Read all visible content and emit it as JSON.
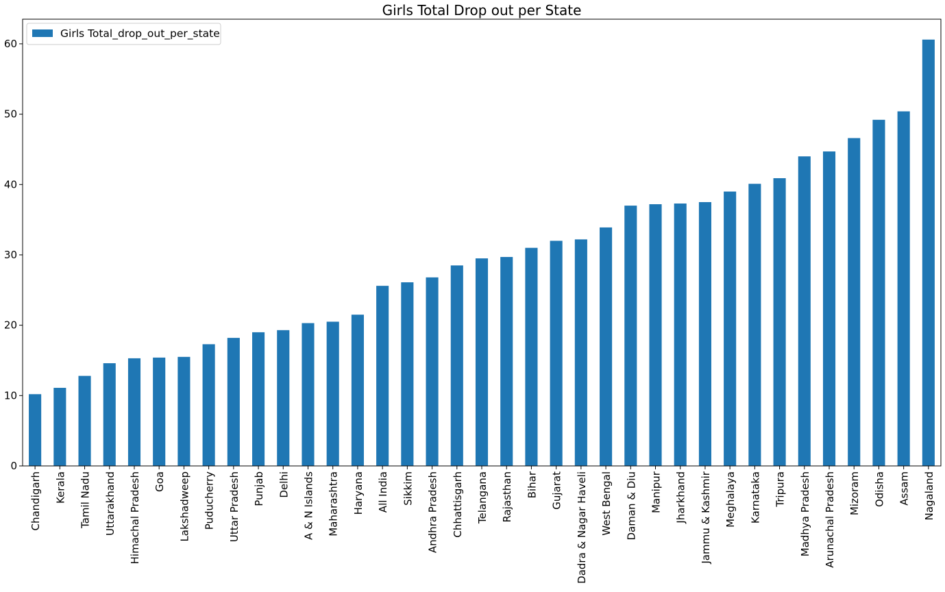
{
  "chart_data": {
    "type": "bar",
    "title": "Girls Total Drop out per State",
    "xlabel": "",
    "ylabel": "",
    "ylim": [
      0,
      63.5
    ],
    "yticks": [
      0,
      10,
      20,
      30,
      40,
      50,
      60
    ],
    "grid": false,
    "legend_position": "top-left",
    "categories": [
      "Chandigarh",
      "Kerala",
      "Tamil Nadu",
      "Uttarakhand",
      "Himachal Pradesh",
      "Goa",
      "Lakshadweep",
      "Puducherry",
      "Uttar Pradesh",
      "Punjab",
      "Delhi",
      "A & N Islands",
      "Maharashtra",
      "Haryana",
      "All India",
      "Sikkim",
      "Andhra Pradesh",
      "Chhattisgarh",
      "Telangana",
      "Rajasthan",
      "Bihar",
      "Gujarat",
      "Dadra & Nagar Haveli",
      "West Bengal",
      "Daman & Diu",
      "Manipur",
      "Jharkhand",
      "Jammu & Kashmir",
      "Meghalaya",
      "Karnataka",
      "Tripura",
      "Madhya Pradesh",
      "Arunachal Pradesh",
      "Mizoram",
      "Odisha",
      "Assam",
      "Nagaland"
    ],
    "series": [
      {
        "name": "Girls Total_drop_out_per_state",
        "color": "#1f77b4",
        "values": [
          10.2,
          11.1,
          12.8,
          14.6,
          15.3,
          15.4,
          15.5,
          17.3,
          18.2,
          19.0,
          19.3,
          20.3,
          20.5,
          21.5,
          25.6,
          26.1,
          26.8,
          28.5,
          29.5,
          29.7,
          31.0,
          32.0,
          32.2,
          33.9,
          37.0,
          37.2,
          37.3,
          37.5,
          39.0,
          40.1,
          40.9,
          44.0,
          44.7,
          46.6,
          49.2,
          50.4,
          60.6
        ]
      }
    ]
  }
}
